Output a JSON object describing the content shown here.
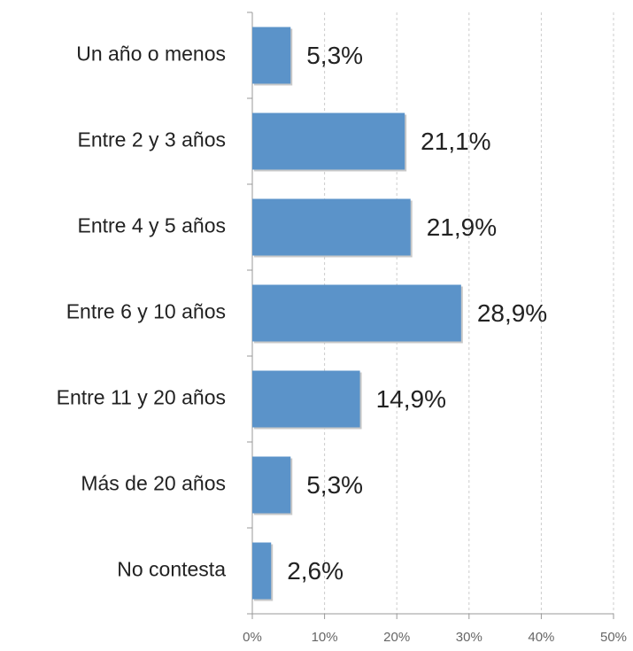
{
  "chart_data": {
    "type": "bar",
    "orientation": "horizontal",
    "categories": [
      "Un año o menos",
      "Entre 2 y 3 años",
      "Entre 4 y 5 años",
      "Entre 6 y 10 años",
      "Entre 11 y 20 años",
      "Más de 20 años",
      "No contesta"
    ],
    "values": [
      5.3,
      21.1,
      21.9,
      28.9,
      14.9,
      5.3,
      2.6
    ],
    "value_labels": [
      "5,3%",
      "21,1%",
      "21,9%",
      "28,9%",
      "14,9%",
      "5,3%",
      "2,6%"
    ],
    "color": "#5b93c9",
    "xlim": [
      0,
      50
    ],
    "xticks": [
      {
        "value": 0,
        "label": "0%"
      },
      {
        "value": 10,
        "label": "10%"
      },
      {
        "value": 20,
        "label": "20%"
      },
      {
        "value": 30,
        "label": "30%"
      },
      {
        "value": 40,
        "label": "40%"
      },
      {
        "value": 50,
        "label": "50%"
      }
    ],
    "grid": true
  }
}
